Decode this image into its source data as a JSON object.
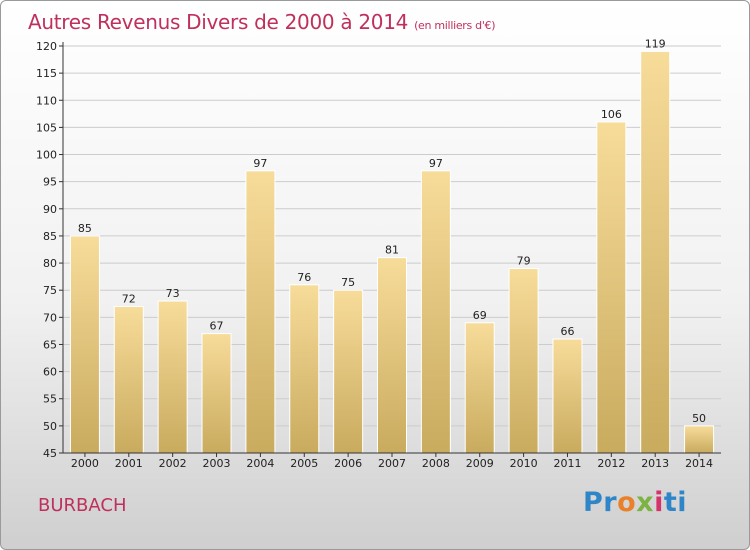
{
  "header": {
    "title": "Autres Revenus Divers de 2000 à 2014",
    "subtitle": "(en milliers d'€)"
  },
  "footer": {
    "place": "BURBACH",
    "logo": {
      "parts": [
        "Pr",
        "o",
        "x",
        "i",
        "ti"
      ],
      "text": "Proxiti"
    }
  },
  "colors": {
    "title": "#c0305c",
    "bar_top": "#f7dc9a",
    "bar_bottom": "#c9ab5e",
    "grid": "#cccccc"
  },
  "chart_data": {
    "type": "bar",
    "title": "Autres Revenus Divers de 2000 à 2014",
    "subtitle": "(en milliers d'€)",
    "categories": [
      "2000",
      "2001",
      "2002",
      "2003",
      "2004",
      "2005",
      "2006",
      "2007",
      "2008",
      "2009",
      "2010",
      "2011",
      "2012",
      "2013",
      "2014"
    ],
    "values": [
      85,
      72,
      73,
      67,
      97,
      76,
      75,
      81,
      97,
      69,
      79,
      66,
      106,
      119,
      50
    ],
    "ylim": [
      45,
      120
    ],
    "yticks": [
      45,
      50,
      55,
      60,
      65,
      70,
      75,
      80,
      85,
      90,
      95,
      100,
      105,
      110,
      115,
      120
    ],
    "grid": true,
    "legend": "none"
  }
}
